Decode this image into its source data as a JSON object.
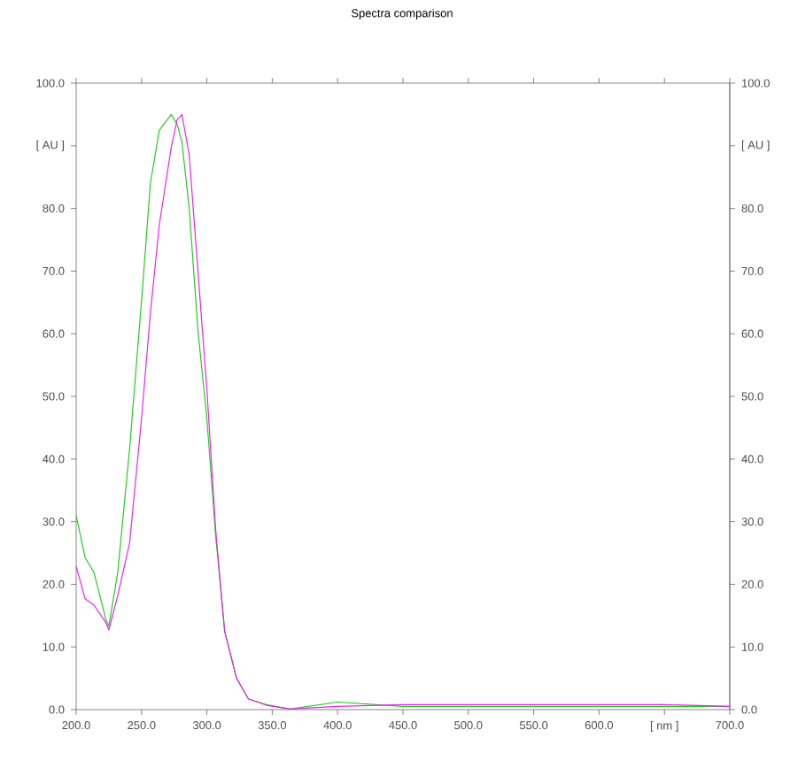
{
  "chart_data": {
    "type": "line",
    "title": "Spectra comparison",
    "x": [
      200,
      206.8,
      213.6,
      222.7,
      225,
      231.8,
      240.9,
      250,
      256.8,
      263.6,
      272.7,
      277.3,
      280.9,
      286.4,
      293.2,
      300,
      306.8,
      313.6,
      322.7,
      331.8,
      345.5,
      363.6,
      400,
      450,
      500,
      550,
      600,
      650,
      700
    ],
    "series": [
      {
        "color": "#22cc22",
        "values": [
          31,
          24.3,
          21.9,
          14.4,
          13.3,
          21.9,
          41.7,
          65.2,
          84,
          92.5,
          95,
          93.4,
          90.6,
          80.2,
          60.5,
          46.4,
          27.6,
          12.5,
          5,
          1.7,
          0.8,
          0.1,
          1.2,
          0.5,
          0.5,
          0.5,
          0.5,
          0.5,
          0.5
        ]
      },
      {
        "color": "#ee22ee",
        "values": [
          22.9,
          17.7,
          16.7,
          13.9,
          12.7,
          18.2,
          26.6,
          46.4,
          63.3,
          77.4,
          89.7,
          94.2,
          95,
          88.7,
          69.9,
          51.1,
          28.5,
          12.5,
          5,
          1.7,
          0.7,
          0.1,
          0.5,
          0.8,
          0.8,
          0.8,
          0.8,
          0.8,
          0.5
        ]
      }
    ],
    "xlim": [
      200,
      700
    ],
    "ylim": [
      0,
      100
    ],
    "y2lim": [
      0,
      100
    ],
    "xticks": [
      {
        "value": 200,
        "label": "200.0"
      },
      {
        "value": 250,
        "label": "250.0"
      },
      {
        "value": 300,
        "label": "300.0"
      },
      {
        "value": 350,
        "label": "350.0"
      },
      {
        "value": 400,
        "label": "400.0"
      },
      {
        "value": 450,
        "label": "450.0"
      },
      {
        "value": 500,
        "label": "500.0"
      },
      {
        "value": 550,
        "label": "550.0"
      },
      {
        "value": 600,
        "label": "600.0"
      },
      {
        "value": 650,
        "label": "[ nm ]"
      },
      {
        "value": 700,
        "label": "700.0"
      }
    ],
    "yticks": [
      {
        "value": 0,
        "label": "0.0"
      },
      {
        "value": 10,
        "label": "10.0"
      },
      {
        "value": 20,
        "label": "20.0"
      },
      {
        "value": 30,
        "label": "30.0"
      },
      {
        "value": 40,
        "label": "40.0"
      },
      {
        "value": 50,
        "label": "50.0"
      },
      {
        "value": 60,
        "label": "60.0"
      },
      {
        "value": 70,
        "label": "70.0"
      },
      {
        "value": 80,
        "label": "80.0"
      },
      {
        "value": 90,
        "label": "[ AU ]"
      },
      {
        "value": 100,
        "label": "100.0"
      }
    ],
    "y2ticks": [
      {
        "value": 0,
        "label": "0.0"
      },
      {
        "value": 10,
        "label": "10.0"
      },
      {
        "value": 20,
        "label": "20.0"
      },
      {
        "value": 30,
        "label": "30.0"
      },
      {
        "value": 40,
        "label": "40.0"
      },
      {
        "value": 50,
        "label": "50.0"
      },
      {
        "value": 60,
        "label": "60.0"
      },
      {
        "value": 70,
        "label": "70.0"
      },
      {
        "value": 80,
        "label": "80.0"
      },
      {
        "value": 90,
        "label": "[ AU ]"
      },
      {
        "value": 100,
        "label": "100.0"
      }
    ],
    "grid": false,
    "legend": false,
    "marker": "none",
    "line_style": "solid"
  }
}
